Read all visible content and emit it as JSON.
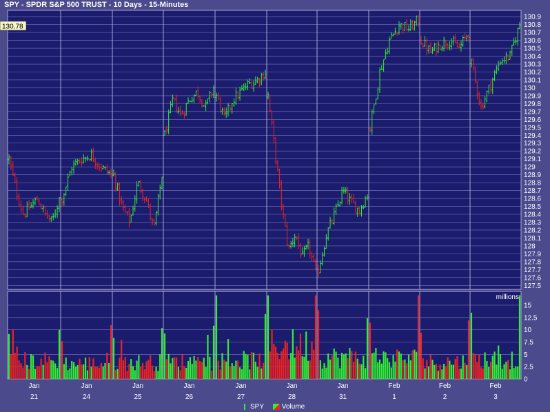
{
  "title": "SPY - SPDR S&P 500 TRUST - 10 Days - 15-Minutes",
  "last_price_label": "130.78",
  "volume_unit_label": "millions",
  "colors": {
    "up": "#33ee33",
    "down": "#ee2222",
    "background": "#4a4a8c",
    "plot": "#1c1c6e",
    "grid": "#8a8ac8",
    "text": "#ffffff",
    "badge": "#f5f5c8"
  },
  "legend": [
    {
      "label": "SPY",
      "icon": "ohlc-bar-icon"
    },
    {
      "label": "Volume",
      "icon": "volume-bar-icon"
    }
  ],
  "chart_data": [
    {
      "type": "ohlc",
      "series_name": "SPY",
      "ylim": [
        127.5,
        130.95
      ],
      "y_ticks": [
        "130.9",
        "130.8",
        "130.7",
        "130.6",
        "130.5",
        "130.4",
        "130.3",
        "130.2",
        "130.1",
        "130",
        "129.9",
        "129.8",
        "129.7",
        "129.6",
        "129.5",
        "129.4",
        "129.3",
        "129.2",
        "129.1",
        "129",
        "128.9",
        "128.8",
        "128.7",
        "128.6",
        "128.5",
        "128.4",
        "128.3",
        "128.2",
        "128.1",
        "128",
        "127.9",
        "127.8",
        "127.7",
        "127.6",
        "127.5"
      ],
      "days": [
        {
          "month": "Jan",
          "day": "21",
          "path": [
            129.1,
            128.7,
            128.4,
            128.5,
            128.6,
            128.4,
            128.3,
            128.6
          ]
        },
        {
          "month": "Jan",
          "day": "24",
          "path": [
            128.6,
            129.0,
            129.1,
            129.15,
            129.0,
            128.9
          ]
        },
        {
          "month": "Jan",
          "day": "25",
          "path": [
            128.9,
            128.5,
            128.3,
            128.8,
            128.6,
            128.2,
            128.9
          ]
        },
        {
          "month": "Jan",
          "day": "26",
          "path": [
            129.4,
            129.85,
            129.65,
            129.85,
            129.95,
            129.75,
            130.0
          ]
        },
        {
          "month": "Jan",
          "day": "27",
          "path": [
            129.9,
            129.6,
            129.85,
            129.95,
            130.05,
            130.1,
            130.2
          ]
        },
        {
          "month": "Jan",
          "day": "28",
          "path": [
            129.9,
            129.2,
            128.5,
            127.95,
            128.15,
            127.85,
            128.0,
            127.65
          ]
        },
        {
          "month": "Jan",
          "day": "31",
          "path": [
            127.7,
            128.15,
            128.4,
            128.7,
            128.55,
            128.45,
            128.65
          ]
        },
        {
          "month": "Feb",
          "day": "1",
          "path": [
            129.5,
            130.2,
            130.6,
            130.8,
            130.75,
            130.85
          ]
        },
        {
          "month": "Feb",
          "day": "2",
          "path": [
            130.6,
            130.45,
            130.55,
            130.6,
            130.5,
            130.7
          ]
        },
        {
          "month": "Feb",
          "day": "3",
          "path": [
            130.3,
            129.75,
            130.05,
            130.35,
            130.4,
            130.8
          ]
        }
      ]
    },
    {
      "type": "bar",
      "series_name": "Volume",
      "ylim": [
        0,
        17.5
      ],
      "y_ticks": [
        "15",
        "12.5",
        "10",
        "7.5",
        "5",
        "2.5",
        "0"
      ],
      "daily_volume_scale": [
        3.5,
        3.0,
        3.2,
        3.3,
        3.6,
        6.5,
        4.2,
        4.0,
        3.3,
        3.8
      ]
    }
  ]
}
